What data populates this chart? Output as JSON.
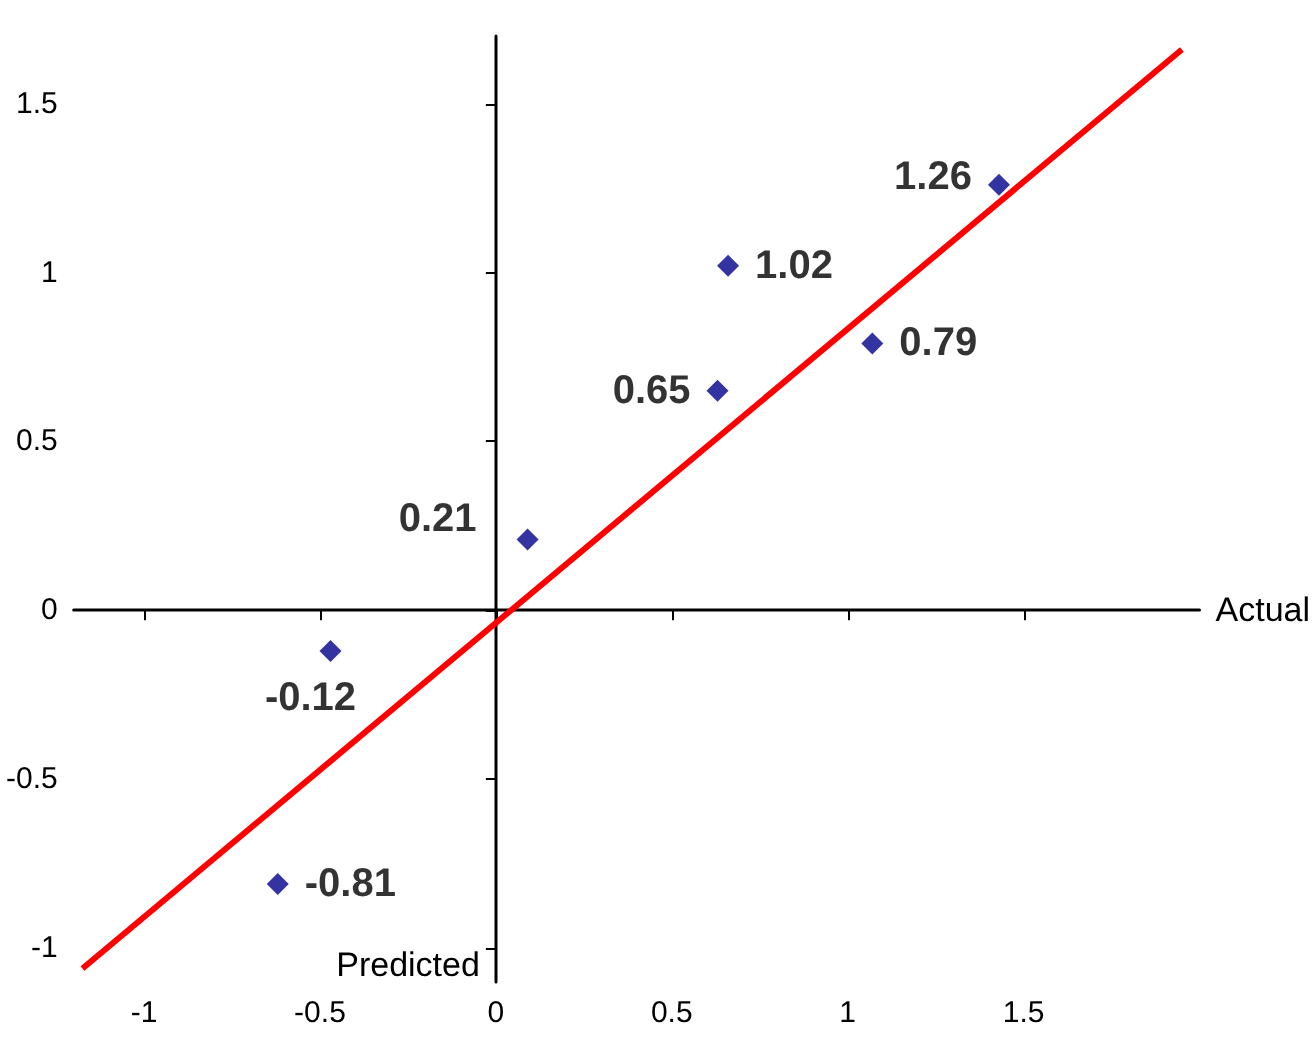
{
  "chart_data": {
    "type": "scatter",
    "xlabel": "Actual",
    "ylabel": "Predicted",
    "xlim": [
      -1.2,
      2
    ],
    "ylim": [
      -1.1,
      1.7
    ],
    "xticks": [
      -1,
      -0.5,
      0,
      0.5,
      1,
      1.5
    ],
    "yticks": [
      -1,
      -0.5,
      0,
      0.5,
      1,
      1.5
    ],
    "series": [
      {
        "color": "#00008b",
        "marker": "diamond",
        "x": [
          -0.62,
          -0.47,
          0.09,
          0.63,
          0.66,
          1.07,
          1.43
        ],
        "values": [
          -0.81,
          -0.12,
          0.21,
          0.65,
          1.02,
          0.79,
          1.26
        ],
        "value_labels": [
          "-0.81",
          "-0.12",
          "0.21",
          "0.65",
          "1.02",
          "0.79",
          "1.26"
        ]
      },
      {
        "type": "line",
        "color": "#ff0000",
        "marker": "none",
        "x": [
          -1.175,
          1.95
        ],
        "values": [
          -1.06,
          1.66
        ]
      }
    ]
  }
}
